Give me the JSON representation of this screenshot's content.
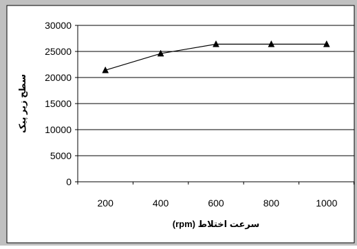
{
  "chart_data": {
    "type": "line",
    "title": "",
    "xlabel": "سرعت اختلاط (rpm)",
    "ylabel": "سطح زیر پیک",
    "x": [
      200,
      400,
      600,
      800,
      1000
    ],
    "series": [
      {
        "values": [
          21400,
          24600,
          26400,
          26400,
          26400
        ]
      }
    ],
    "xlim": [
      100,
      1100
    ],
    "ylim": [
      0,
      30000
    ],
    "yticks": [
      0,
      5000,
      10000,
      15000,
      20000,
      25000,
      30000
    ],
    "xtick_labels": [
      "200",
      "400",
      "600",
      "800",
      "1000"
    ],
    "grid": "horizontal",
    "legend": "none",
    "marker": "triangle",
    "colors": {
      "plot_background": "#ffffff",
      "frame_background": "#c0c0c0",
      "line": "#000000",
      "gridline": "#000000"
    }
  }
}
